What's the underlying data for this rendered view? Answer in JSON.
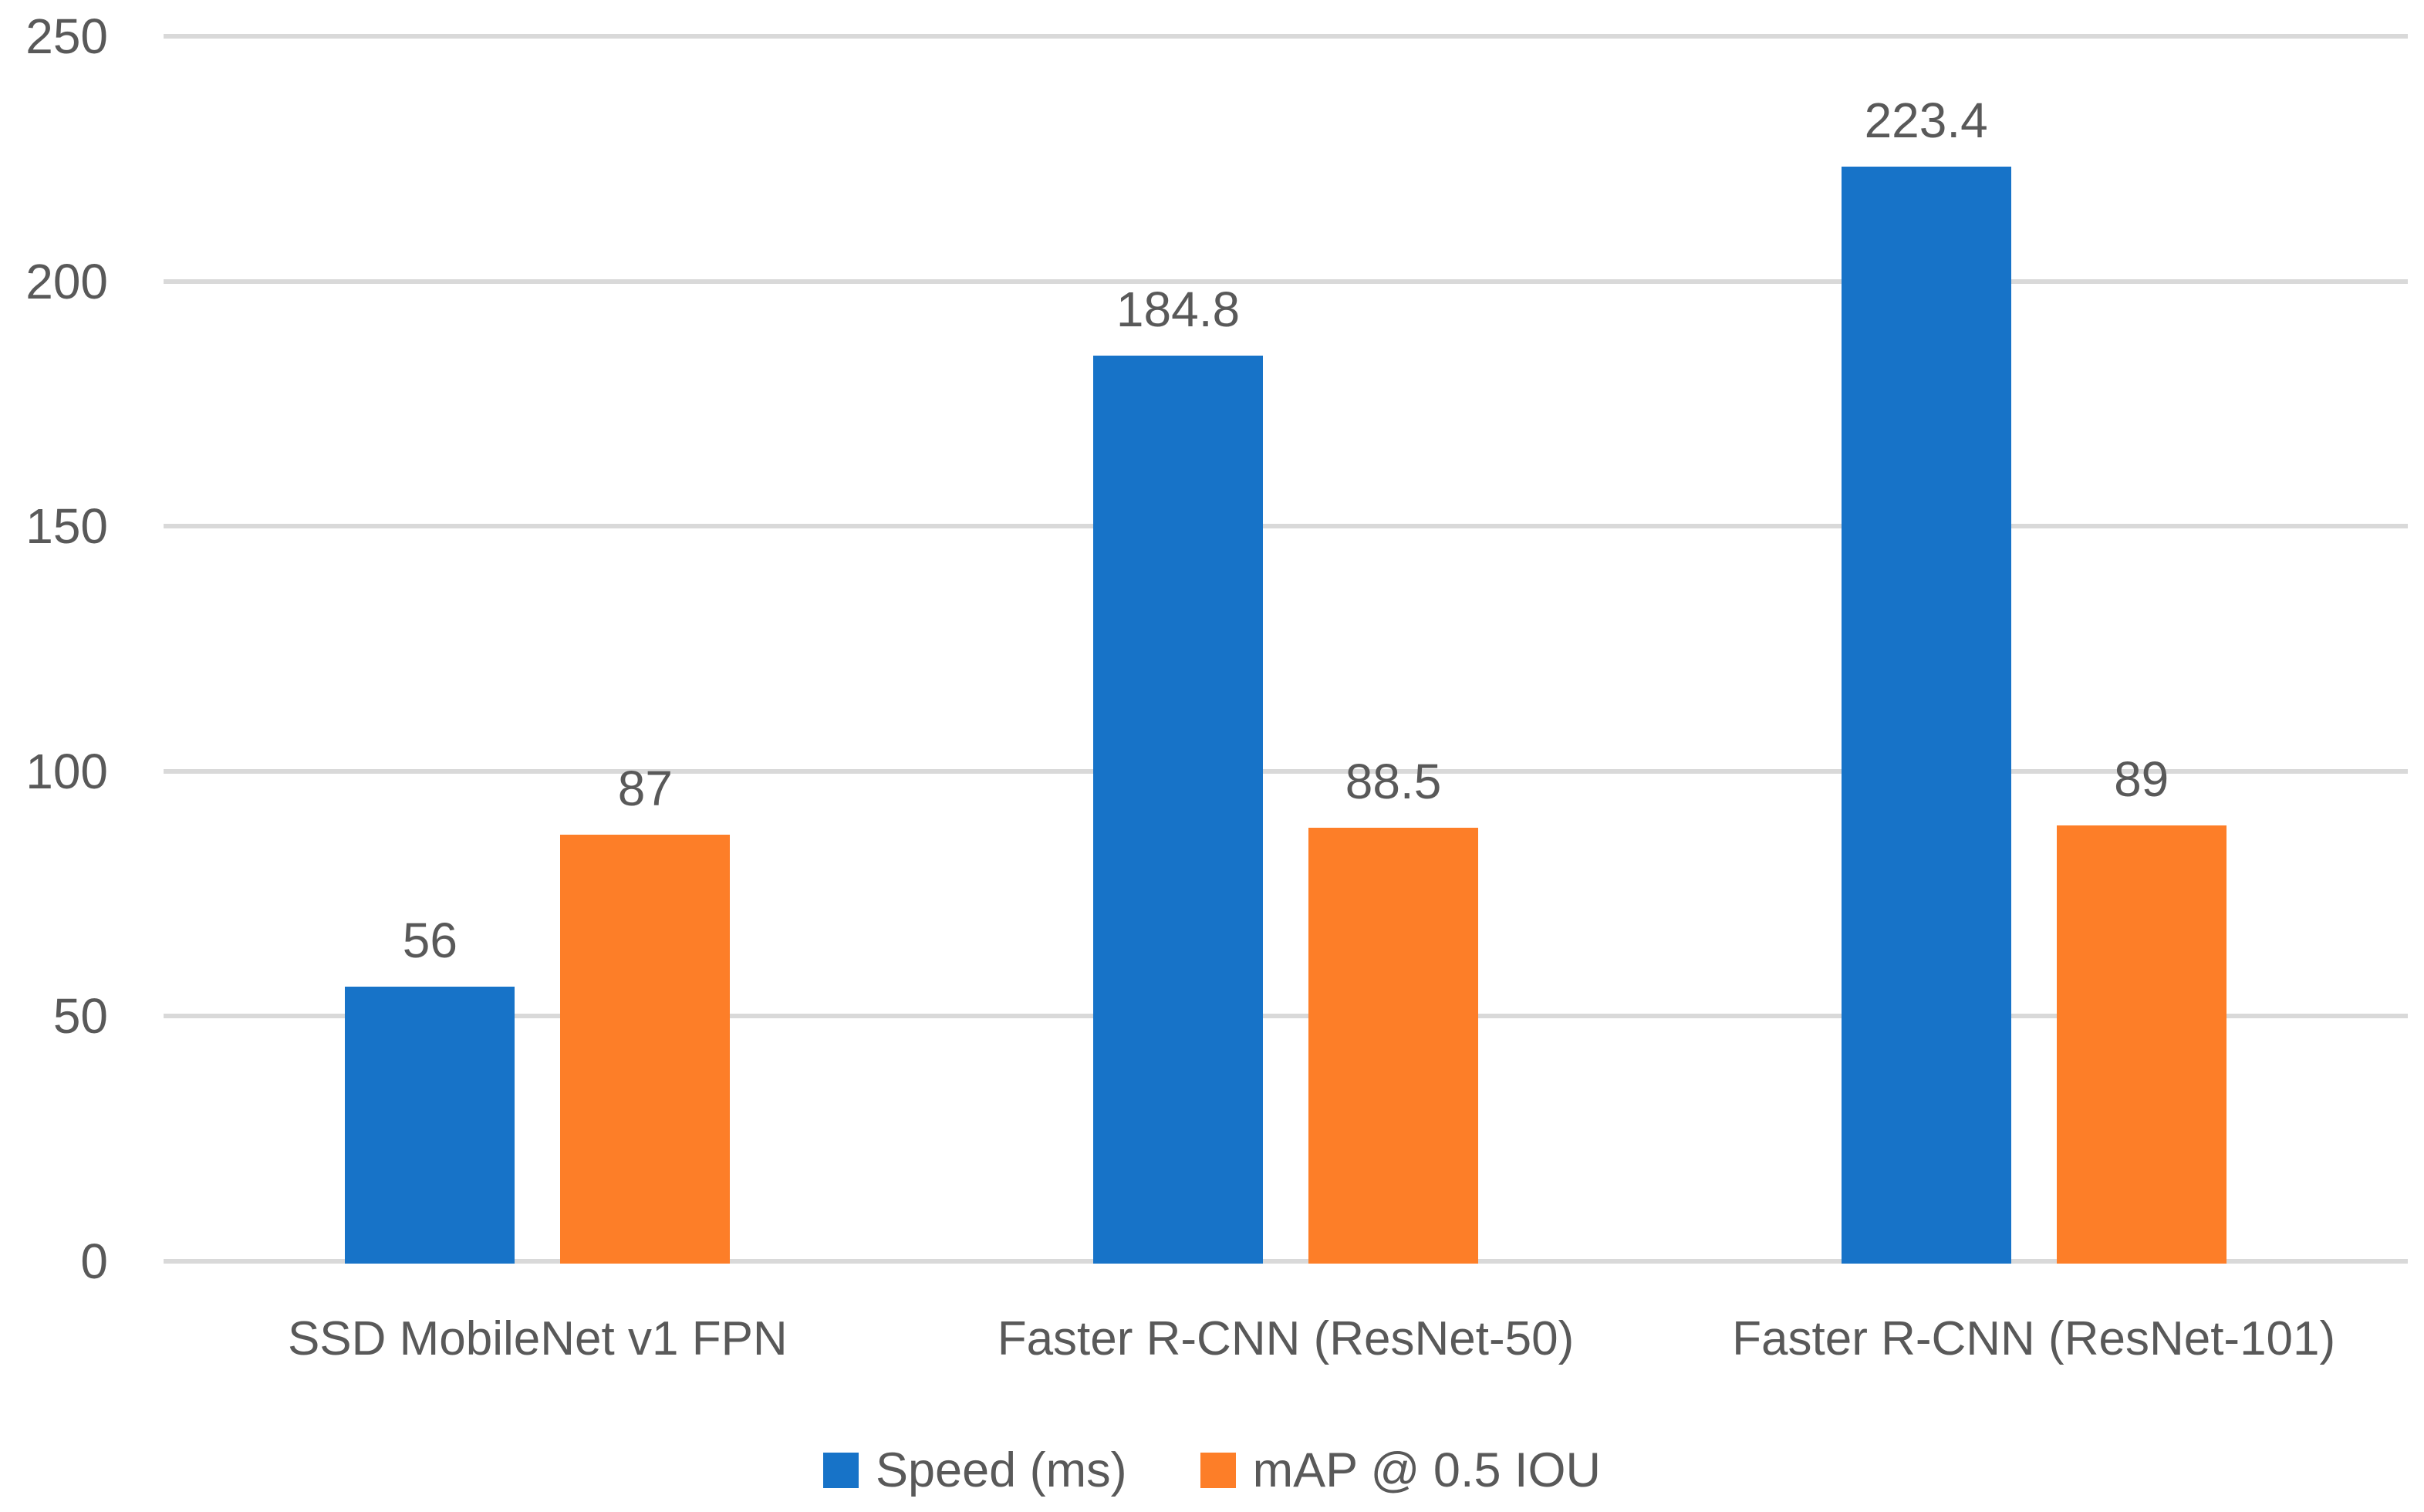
{
  "chart_data": {
    "type": "bar",
    "title": "",
    "categories": [
      "SSD MobileNet v1 FPN",
      "Faster R-CNN (ResNet-50)",
      "Faster R-CNN (ResNet-101)"
    ],
    "series": [
      {
        "name": "Speed (ms)",
        "color": "#1773C8",
        "values": [
          56,
          184.8,
          223.4
        ],
        "data_labels": [
          "56",
          "184.8",
          "223.4"
        ]
      },
      {
        "name": "mAP @ 0.5 IOU",
        "color": "#FD7E28",
        "values": [
          87,
          88.5,
          89
        ],
        "data_labels": [
          "87",
          "88.5",
          "89"
        ]
      }
    ],
    "y_axis": {
      "min": 0,
      "max": 250,
      "step": 50,
      "tick_labels": [
        "0",
        "50",
        "100",
        "150",
        "200",
        "250"
      ]
    },
    "x_axis_label": "",
    "y_axis_label": "",
    "grid": true,
    "legend_position": "bottom-center",
    "gridline_color": "#D9D9D9",
    "text_color": "#595959",
    "background_color": "#FFFFFF"
  }
}
